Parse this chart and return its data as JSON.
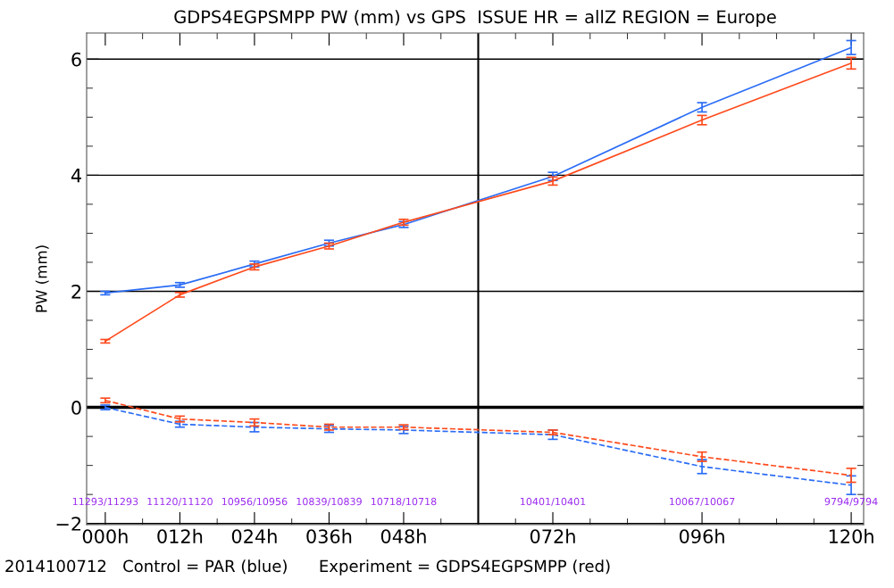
{
  "chart_data": {
    "type": "line",
    "title": "GDPS4EGPSMPP PW (mm) vs GPS  ISSUE HR = allZ REGION = Europe",
    "ylabel": "PW (mm)",
    "x": [
      0,
      12,
      24,
      36,
      48,
      72,
      96,
      120
    ],
    "xlim": [
      -3,
      122
    ],
    "ylim": [
      -2.02,
      6.45
    ],
    "xticks": [
      {
        "value": 0,
        "label": "000h"
      },
      {
        "value": 12,
        "label": "012h"
      },
      {
        "value": 24,
        "label": "024h"
      },
      {
        "value": 36,
        "label": "036h"
      },
      {
        "value": 48,
        "label": "048h"
      },
      {
        "value": 72,
        "label": "072h"
      },
      {
        "value": 96,
        "label": "096h"
      },
      {
        "value": 120,
        "label": "120h"
      }
    ],
    "yticks": [
      {
        "value": -2,
        "label": "−2"
      },
      0,
      2,
      4,
      6
    ],
    "grid": "y",
    "legend": false,
    "marker": "none",
    "series": [
      {
        "color": "#2a6cf5",
        "line_style": "solid",
        "values": [
          1.97,
          2.11,
          2.47,
          2.83,
          3.15,
          3.98,
          5.17,
          6.2
        ],
        "errors": [
          0.03,
          0.04,
          0.05,
          0.05,
          0.05,
          0.07,
          0.08,
          0.12
        ]
      },
      {
        "color": "#ff4a1c",
        "line_style": "solid",
        "values": [
          1.14,
          1.94,
          2.42,
          2.78,
          3.19,
          3.9,
          4.95,
          5.93
        ],
        "errors": [
          0.03,
          0.04,
          0.05,
          0.05,
          0.05,
          0.07,
          0.08,
          0.1
        ]
      },
      {
        "color": "#2a6cf5",
        "line_style": "dashed",
        "values": [
          0.0,
          -0.29,
          -0.34,
          -0.37,
          -0.39,
          -0.47,
          -1.02,
          -1.34
        ],
        "errors": [
          0.04,
          0.05,
          0.08,
          0.06,
          0.06,
          0.08,
          0.12,
          0.16
        ]
      },
      {
        "color": "#ff4a1c",
        "line_style": "dashed",
        "values": [
          0.12,
          -0.2,
          -0.26,
          -0.34,
          -0.34,
          -0.43,
          -0.85,
          -1.17
        ],
        "errors": [
          0.04,
          0.05,
          0.06,
          0.05,
          0.04,
          0.04,
          0.08,
          0.12
        ]
      }
    ],
    "ref_lines": [
      {
        "axis": "x",
        "value": 60,
        "color": "#000000"
      },
      {
        "axis": "y",
        "value": 0,
        "color": "#000000"
      }
    ],
    "annotations": [
      "11293/11293",
      "11120/11120",
      "10956/10956",
      "10839/10839",
      "10718/10718",
      "10401/10401",
      "10067/10067",
      "9794/9794",
      "2014100712   Control = PAR (blue)      Experiment = GDPS4EGPSMPP (red)"
    ]
  }
}
